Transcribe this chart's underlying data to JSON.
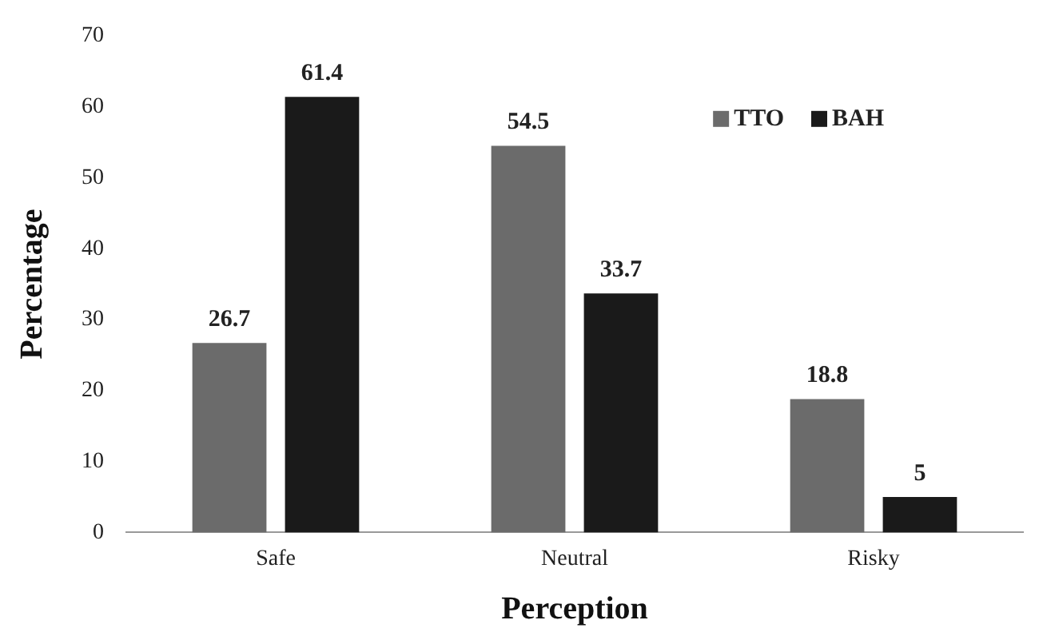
{
  "chart_data": {
    "type": "bar",
    "xlabel": "Perception",
    "ylabel": "Percentage",
    "categories": [
      "Safe",
      "Neutral",
      "Risky"
    ],
    "series": [
      {
        "name": "TTO",
        "color": "#6b6b6b",
        "values": [
          26.7,
          54.5,
          18.8
        ]
      },
      {
        "name": "BAH",
        "color": "#1a1a1a",
        "values": [
          61.4,
          33.7,
          5
        ]
      }
    ],
    "ylim": [
      0,
      70
    ],
    "yticks": [
      0,
      10,
      20,
      30,
      40,
      50,
      60,
      70
    ],
    "grid": false,
    "legend": "top right",
    "data_labels": true
  }
}
